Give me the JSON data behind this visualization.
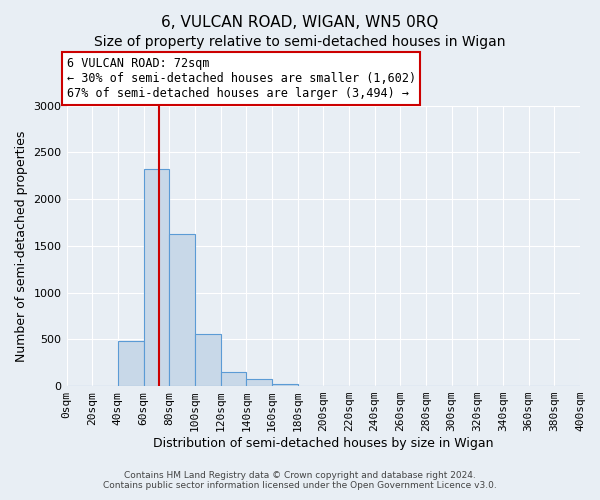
{
  "title": "6, VULCAN ROAD, WIGAN, WN5 0RQ",
  "subtitle": "Size of property relative to semi-detached houses in Wigan",
  "xlabel": "Distribution of semi-detached houses by size in Wigan",
  "ylabel": "Number of semi-detached properties",
  "bin_edges": [
    0,
    20,
    40,
    60,
    80,
    100,
    120,
    140,
    160,
    180,
    200,
    220,
    240,
    260,
    280,
    300,
    320,
    340,
    360,
    380,
    400
  ],
  "bin_values": [
    5,
    5,
    480,
    2320,
    1630,
    560,
    150,
    75,
    20,
    5,
    2,
    1,
    0,
    0,
    0,
    0,
    0,
    0,
    0,
    0
  ],
  "bar_color": "#c8d8e8",
  "bar_edge_color": "#5b9bd5",
  "property_size": 72,
  "red_line_x": 72,
  "annotation_title": "6 VULCAN ROAD: 72sqm",
  "annotation_line1": "← 30% of semi-detached houses are smaller (1,602)",
  "annotation_line2": "67% of semi-detached houses are larger (3,494) →",
  "annotation_box_color": "#ffffff",
  "annotation_box_edge_color": "#cc0000",
  "ylim": [
    0,
    3000
  ],
  "yticks": [
    0,
    500,
    1000,
    1500,
    2000,
    2500,
    3000
  ],
  "tick_labels": [
    "0sqm",
    "20sqm",
    "40sqm",
    "60sqm",
    "80sqm",
    "100sqm",
    "120sqm",
    "140sqm",
    "160sqm",
    "180sqm",
    "200sqm",
    "220sqm",
    "240sqm",
    "260sqm",
    "280sqm",
    "300sqm",
    "320sqm",
    "340sqm",
    "360sqm",
    "380sqm",
    "400sqm"
  ],
  "footer1": "Contains HM Land Registry data © Crown copyright and database right 2024.",
  "footer2": "Contains public sector information licensed under the Open Government Licence v3.0.",
  "background_color": "#e8eef4",
  "grid_color": "#ffffff",
  "title_fontsize": 11,
  "subtitle_fontsize": 10,
  "axis_label_fontsize": 9,
  "tick_fontsize": 8,
  "annotation_fontsize": 8.5
}
